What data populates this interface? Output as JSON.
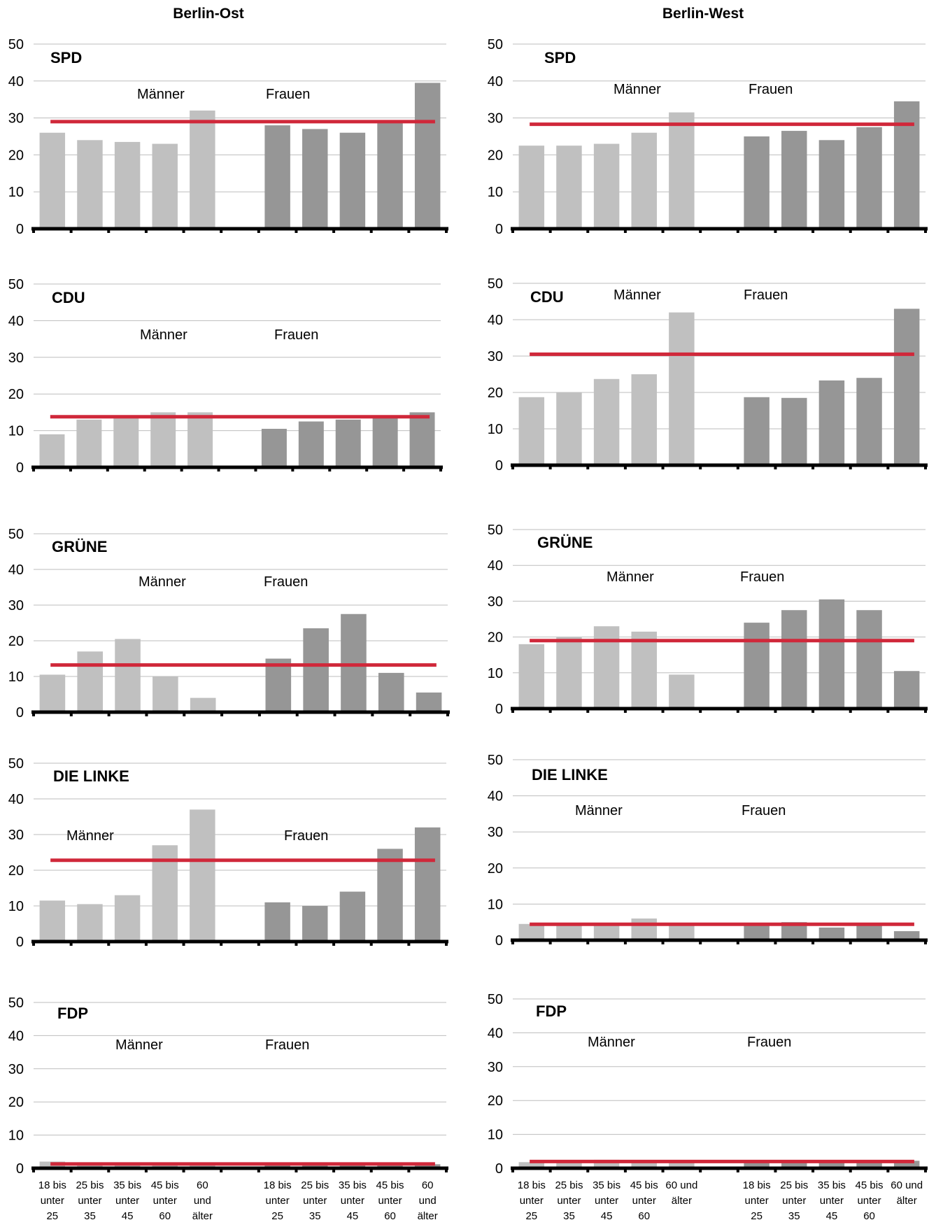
{
  "columns": {
    "east_title": "Berlin-Ost",
    "west_title": "Berlin-West"
  },
  "chart_data": [
    {
      "type": "bar",
      "region": "Berlin-Ost",
      "party": "SPD",
      "ylim": [
        0,
        50
      ],
      "yticks": [
        0,
        10,
        20,
        30,
        40,
        50
      ],
      "groups": [
        "Männer",
        "Frauen"
      ],
      "series": [
        {
          "name": "Männer",
          "values": [
            26,
            24,
            23.5,
            23,
            32
          ]
        },
        {
          "name": "Frauen",
          "values": [
            28,
            27,
            26,
            29,
            39.5
          ]
        }
      ],
      "mean_line": 29,
      "colors": {
        "maenner": "#c0c0c0",
        "frauen": "#969696",
        "mean": "#d0283a"
      }
    },
    {
      "type": "bar",
      "region": "Berlin-West",
      "party": "SPD",
      "ylim": [
        0,
        50
      ],
      "yticks": [
        0,
        10,
        20,
        30,
        40,
        50
      ],
      "groups": [
        "Männer",
        "Frauen"
      ],
      "series": [
        {
          "name": "Männer",
          "values": [
            22.5,
            22.5,
            23,
            26,
            31.5
          ]
        },
        {
          "name": "Frauen",
          "values": [
            25,
            26.5,
            24,
            27.5,
            34.5
          ]
        }
      ],
      "mean_line": 28.3,
      "colors": {
        "maenner": "#c0c0c0",
        "frauen": "#969696",
        "mean": "#d0283a"
      }
    },
    {
      "type": "bar",
      "region": "Berlin-Ost",
      "party": "CDU",
      "ylim": [
        0,
        50
      ],
      "yticks": [
        0,
        10,
        20,
        30,
        40,
        50
      ],
      "groups": [
        "Männer",
        "Frauen"
      ],
      "series": [
        {
          "name": "Männer",
          "values": [
            9,
            13,
            14,
            15,
            15
          ]
        },
        {
          "name": "Frauen",
          "values": [
            10.5,
            12.5,
            13,
            14,
            15
          ]
        }
      ],
      "mean_line": 13.8,
      "colors": {
        "maenner": "#c0c0c0",
        "frauen": "#969696",
        "mean": "#d0283a"
      }
    },
    {
      "type": "bar",
      "region": "Berlin-West",
      "party": "CDU",
      "ylim": [
        0,
        50
      ],
      "yticks": [
        0,
        10,
        20,
        30,
        40,
        50
      ],
      "groups": [
        "Männer",
        "Frauen"
      ],
      "series": [
        {
          "name": "Männer",
          "values": [
            18.7,
            20,
            23.7,
            25,
            42
          ]
        },
        {
          "name": "Frauen",
          "values": [
            18.7,
            18.5,
            23.3,
            24,
            43
          ]
        }
      ],
      "mean_line": 30.5,
      "colors": {
        "maenner": "#c0c0c0",
        "frauen": "#969696",
        "mean": "#d0283a"
      }
    },
    {
      "type": "bar",
      "region": "Berlin-Ost",
      "party": "GRÜNE",
      "ylim": [
        0,
        50
      ],
      "yticks": [
        0,
        10,
        20,
        30,
        40,
        50
      ],
      "groups": [
        "Männer",
        "Frauen"
      ],
      "series": [
        {
          "name": "Männer",
          "values": [
            10.5,
            17,
            20.5,
            10,
            4
          ]
        },
        {
          "name": "Frauen",
          "values": [
            15,
            23.5,
            27.5,
            11,
            5.5
          ]
        }
      ],
      "mean_line": 13.2,
      "colors": {
        "maenner": "#c0c0c0",
        "frauen": "#969696",
        "mean": "#d0283a"
      }
    },
    {
      "type": "bar",
      "region": "Berlin-West",
      "party": "GRÜNE",
      "ylim": [
        0,
        50
      ],
      "yticks": [
        0,
        10,
        20,
        30,
        40,
        50
      ],
      "groups": [
        "Männer",
        "Frauen"
      ],
      "series": [
        {
          "name": "Männer",
          "values": [
            18,
            20,
            23,
            21.5,
            9.5
          ]
        },
        {
          "name": "Frauen",
          "values": [
            24,
            27.5,
            30.5,
            27.5,
            10.5
          ]
        }
      ],
      "mean_line": 19,
      "colors": {
        "maenner": "#c0c0c0",
        "frauen": "#969696",
        "mean": "#d0283a"
      }
    },
    {
      "type": "bar",
      "region": "Berlin-Ost",
      "party": "DIE LINKE",
      "ylim": [
        0,
        50
      ],
      "yticks": [
        0,
        10,
        20,
        30,
        40,
        50
      ],
      "groups": [
        "Männer",
        "Frauen"
      ],
      "series": [
        {
          "name": "Männer",
          "values": [
            11.5,
            10.5,
            13,
            27,
            37
          ]
        },
        {
          "name": "Frauen",
          "values": [
            11,
            10,
            14,
            26,
            32
          ]
        }
      ],
      "mean_line": 22.8,
      "colors": {
        "maenner": "#c0c0c0",
        "frauen": "#969696",
        "mean": "#d0283a"
      }
    },
    {
      "type": "bar",
      "region": "Berlin-West",
      "party": "DIE LINKE",
      "ylim": [
        0,
        50
      ],
      "yticks": [
        0,
        10,
        20,
        30,
        40,
        50
      ],
      "groups": [
        "Männer",
        "Frauen"
      ],
      "series": [
        {
          "name": "Männer",
          "values": [
            4.5,
            4,
            4.5,
            6,
            4.5
          ]
        },
        {
          "name": "Frauen",
          "values": [
            4,
            5,
            3.5,
            4,
            2.5
          ]
        }
      ],
      "mean_line": 4.4,
      "colors": {
        "maenner": "#c0c0c0",
        "frauen": "#969696",
        "mean": "#d0283a"
      }
    },
    {
      "type": "bar",
      "region": "Berlin-Ost",
      "party": "FDP",
      "ylim": [
        0,
        50
      ],
      "yticks": [
        0,
        10,
        20,
        30,
        40,
        50
      ],
      "groups": [
        "Männer",
        "Frauen"
      ],
      "categories": [
        "18 bis unter 25",
        "25 bis unter 35",
        "35 bis unter 45",
        "45 bis unter 60",
        "60 und älter"
      ],
      "series": [
        {
          "name": "Männer",
          "values": [
            2,
            1.8,
            1.5,
            1.5,
            1.5
          ]
        },
        {
          "name": "Frauen",
          "values": [
            1.5,
            1.8,
            1.3,
            1.3,
            1.2
          ]
        }
      ],
      "mean_line": 1.3,
      "colors": {
        "maenner": "#c0c0c0",
        "frauen": "#969696",
        "mean": "#d0283a"
      }
    },
    {
      "type": "bar",
      "region": "Berlin-West",
      "party": "FDP",
      "ylim": [
        0,
        50
      ],
      "yticks": [
        0,
        10,
        20,
        30,
        40,
        50
      ],
      "groups": [
        "Männer",
        "Frauen"
      ],
      "categories": [
        "18 bis unter 25",
        "25 bis unter 35",
        "35 bis unter 45",
        "45 bis unter 60",
        "60 und älter"
      ],
      "series": [
        {
          "name": "Männer",
          "values": [
            1.8,
            2,
            2.5,
            2,
            2
          ]
        },
        {
          "name": "Frauen",
          "values": [
            2,
            2,
            2,
            2,
            2.2
          ]
        }
      ],
      "mean_line": 2,
      "colors": {
        "maenner": "#c0c0c0",
        "frauen": "#969696",
        "mean": "#d0283a"
      }
    }
  ]
}
